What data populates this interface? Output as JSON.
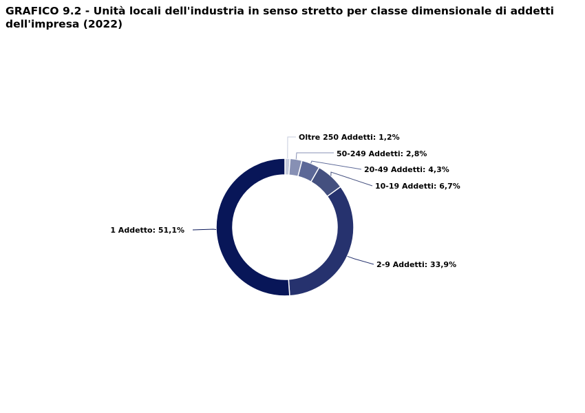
{
  "title_line1": "GRAFICO 9.2 - Unità locali dell'industria in senso stretto per classe dimensionale di addetti",
  "title_line2": "dell'impresa (2022)",
  "chart_data": {
    "type": "pie",
    "variant": "donut",
    "slices": [
      {
        "label": "Oltre 250 Addetti: 1,2%",
        "value": 1.2,
        "color": "#c5cbdc"
      },
      {
        "label": "50-249 Addetti: 2,8%",
        "value": 2.8,
        "color": "#8790b4"
      },
      {
        "label": "20-49 Addetti: 4,3%",
        "value": 4.3,
        "color": "#5c6897"
      },
      {
        "label": "10-19 Addetti: 6,7%",
        "value": 6.7,
        "color": "#44507f"
      },
      {
        "label": "2-9 Addetti: 33,9%",
        "value": 33.9,
        "color": "#26326e"
      },
      {
        "label": "1 Addetto: 51,1%",
        "value": 51.1,
        "color": "#081658"
      }
    ]
  }
}
